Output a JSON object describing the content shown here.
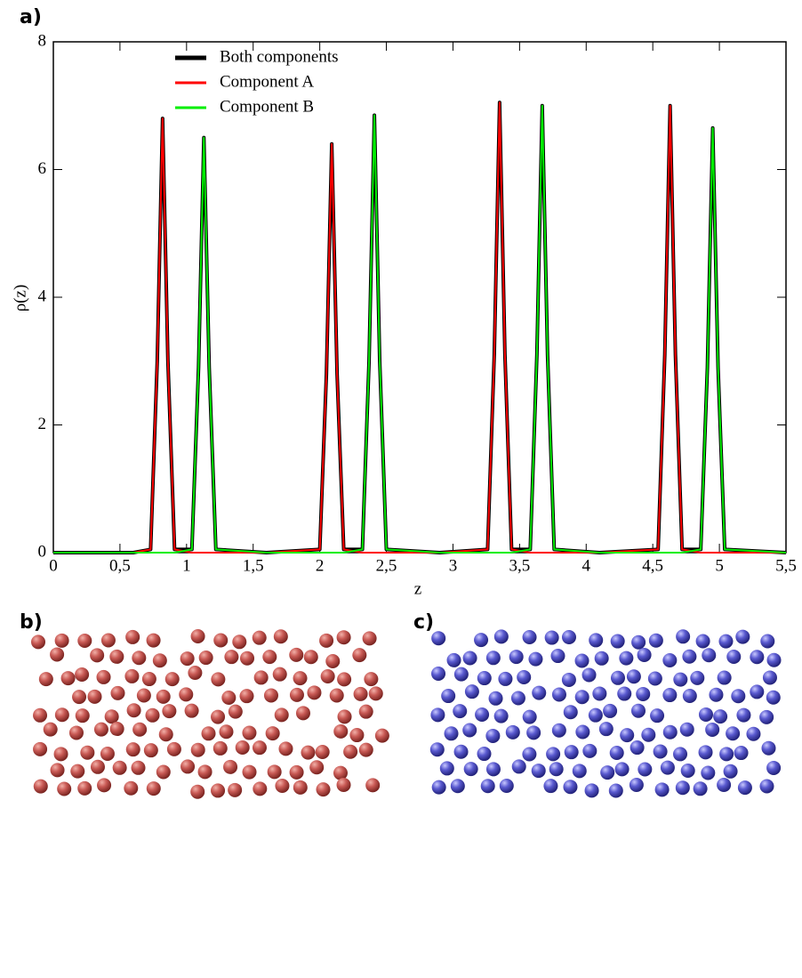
{
  "panel_labels": {
    "a": "a)",
    "b": "b)",
    "c": "c)"
  },
  "chart_data": {
    "type": "line",
    "xlabel": "z",
    "ylabel": "ρ(z)",
    "x": [
      0,
      0.6,
      0.73,
      0.78,
      0.82,
      0.86,
      0.91,
      1.04,
      1.09,
      1.13,
      1.17,
      1.22,
      1.6,
      2.0,
      2.05,
      2.09,
      2.13,
      2.18,
      2.32,
      2.37,
      2.41,
      2.45,
      2.5,
      2.9,
      3.26,
      3.31,
      3.35,
      3.39,
      3.44,
      3.58,
      3.63,
      3.67,
      3.71,
      3.76,
      4.1,
      4.54,
      4.59,
      4.63,
      4.67,
      4.72,
      4.86,
      4.91,
      4.95,
      4.99,
      5.04,
      5.5
    ],
    "series": [
      {
        "name": "Both components",
        "color": "#000000",
        "width": 4,
        "values": [
          0,
          0,
          0.05,
          3,
          6.8,
          3,
          0.05,
          0.05,
          2.9,
          6.5,
          2.9,
          0.05,
          0,
          0.05,
          2.8,
          6.4,
          2.8,
          0.05,
          0.05,
          3,
          6.85,
          3,
          0.05,
          0,
          0.05,
          3.1,
          7.05,
          3.1,
          0.05,
          0.05,
          3.1,
          7.0,
          3.1,
          0.05,
          0,
          0.05,
          3.1,
          7.0,
          3.1,
          0.05,
          0.05,
          2.9,
          6.65,
          2.9,
          0.05,
          0
        ]
      },
      {
        "name": "Component A",
        "color": "#ff0000",
        "width": 2,
        "values": [
          0,
          0,
          0.05,
          3,
          6.8,
          3,
          0.05,
          0,
          0,
          0,
          0,
          0,
          0,
          0.05,
          2.8,
          6.4,
          2.8,
          0.05,
          0,
          0,
          0,
          0,
          0,
          0,
          0.05,
          3.1,
          7.05,
          3.1,
          0.05,
          0,
          0,
          0,
          0,
          0,
          0,
          0.05,
          3.1,
          7.0,
          3.1,
          0.05,
          0,
          0,
          0,
          0,
          0,
          0
        ]
      },
      {
        "name": "Component B",
        "color": "#00ee00",
        "width": 2,
        "values": [
          0,
          0,
          0,
          0,
          0,
          0,
          0,
          0.05,
          2.9,
          6.5,
          2.9,
          0.05,
          0,
          0,
          0,
          0,
          0,
          0,
          0.05,
          3,
          6.85,
          3,
          0.05,
          0,
          0,
          0,
          0,
          0,
          0,
          0.05,
          3.1,
          7.0,
          3.1,
          0.05,
          0,
          0,
          0,
          0,
          0,
          0,
          0.05,
          2.9,
          6.65,
          2.9,
          0.05,
          0
        ]
      }
    ],
    "xlim": [
      0,
      5.5
    ],
    "xticks": [
      0,
      {
        "value": 0.5,
        "label": "0,5"
      },
      1,
      {
        "value": 1.5,
        "label": "1,5"
      },
      2,
      {
        "value": 2.5,
        "label": "2,5"
      },
      3,
      {
        "value": 3.5,
        "label": "3,5"
      },
      4,
      {
        "value": 4.5,
        "label": "4,5"
      },
      5,
      {
        "value": 5.5,
        "label": "5,5"
      }
    ],
    "ylim": [
      0,
      8
    ],
    "yticks": [
      0,
      2,
      4,
      6,
      8
    ],
    "legend": "upper-left"
  }
}
